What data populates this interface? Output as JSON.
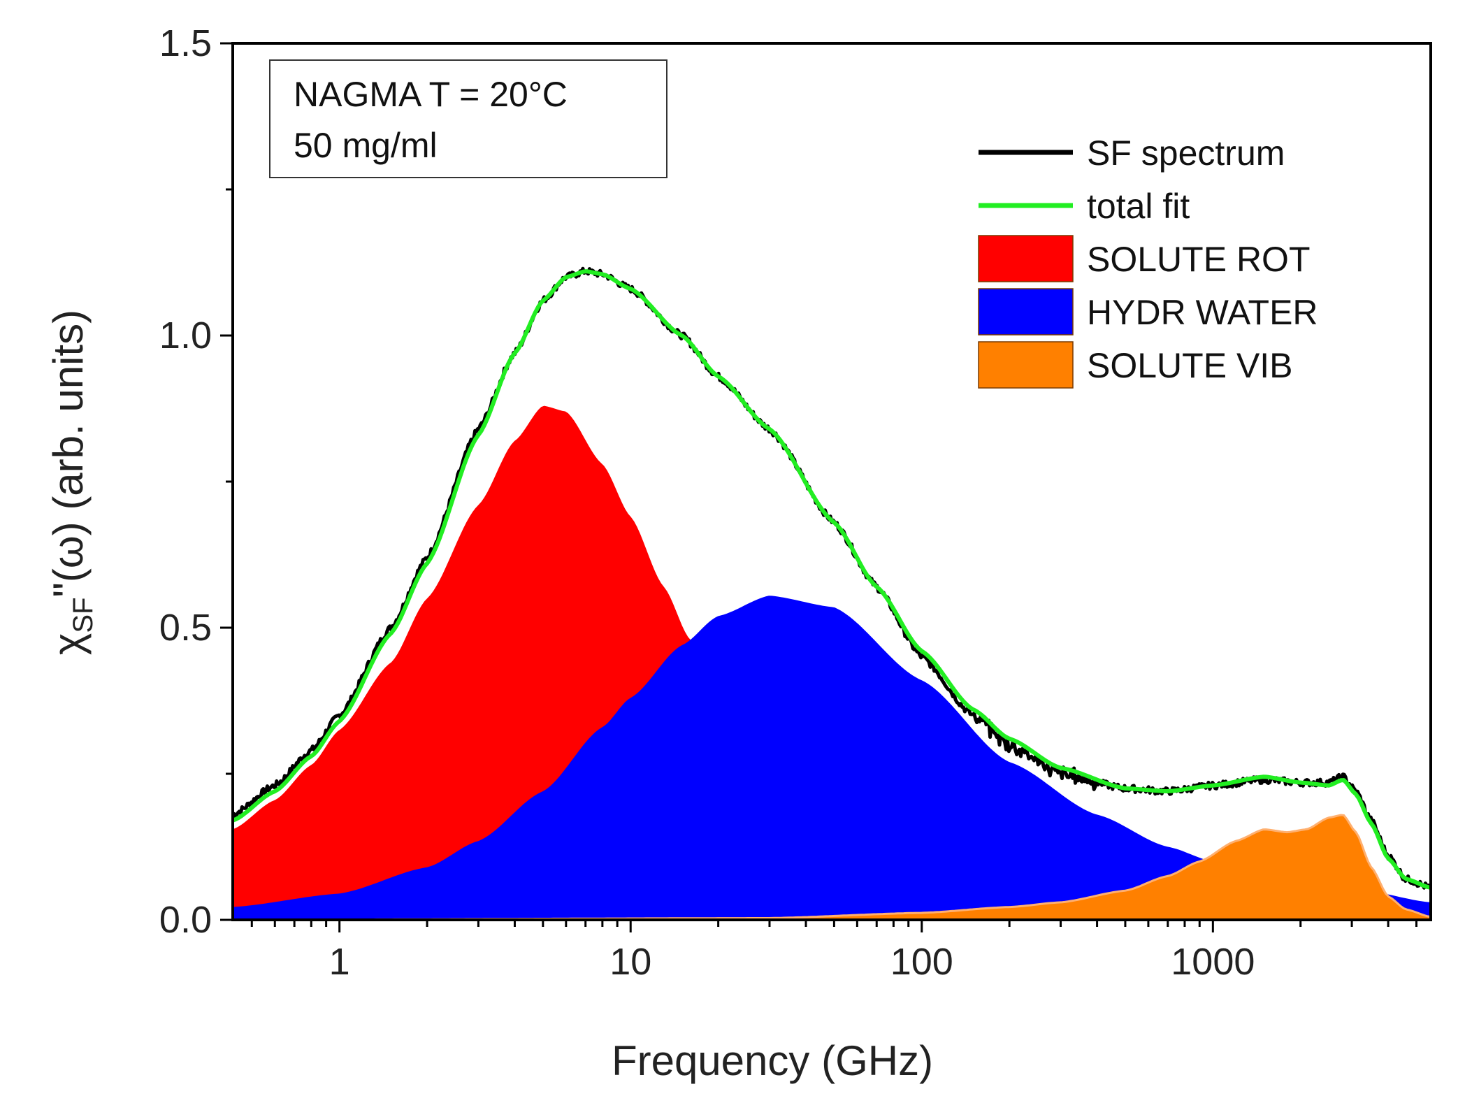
{
  "chart_data": {
    "type": "area",
    "title": "",
    "xlabel": "Frequency (GHz)",
    "ylabel": "χSF\"(ω) (arb. units)",
    "ylabel_parts": {
      "symbol": "χ",
      "subscript": "SF",
      "rest": "\"(ω) (arb. units)"
    },
    "xscale": "log",
    "xlim": [
      0.43,
      5600
    ],
    "ylim": [
      0,
      1.5
    ],
    "xticks": [
      1,
      10,
      100,
      1000
    ],
    "xtick_labels": [
      "1",
      "10",
      "100",
      "1000"
    ],
    "yticks": [
      0,
      0.5,
      1.0,
      1.5
    ],
    "ytick_labels": [
      "0.0",
      "0.5",
      "1.0",
      "1.5"
    ],
    "annotation": [
      "NAGMA T = 20°C",
      "50 mg/ml"
    ],
    "legend_position": "top-right",
    "legend": [
      {
        "label": "SF spectrum",
        "kind": "line",
        "color": "#000000"
      },
      {
        "label": "total fit",
        "kind": "line",
        "color": "#22ee22"
      },
      {
        "label": "SOLUTE ROT",
        "kind": "area",
        "color": "#ff0000"
      },
      {
        "label": "HYDR WATER",
        "kind": "area",
        "color": "#0000ff"
      },
      {
        "label": "SOLUTE VIB",
        "kind": "area",
        "color": "#ff8000"
      }
    ],
    "series": [
      {
        "name": "SOLUTE ROT",
        "kind": "area",
        "color": "#ff0000",
        "x": [
          0.43,
          0.6,
          0.8,
          1,
          1.5,
          2,
          3,
          4,
          5,
          6,
          8,
          10,
          13,
          16,
          20,
          25,
          30,
          40,
          60,
          100,
          200,
          500,
          1000,
          5600
        ],
        "y": [
          0.155,
          0.205,
          0.265,
          0.325,
          0.44,
          0.55,
          0.71,
          0.82,
          0.88,
          0.87,
          0.78,
          0.69,
          0.57,
          0.48,
          0.39,
          0.31,
          0.25,
          0.17,
          0.09,
          0.035,
          0.01,
          0.003,
          0.001,
          0.0
        ]
      },
      {
        "name": "HYDR WATER",
        "kind": "area",
        "color": "#0000ff",
        "x": [
          0.43,
          1,
          2,
          3,
          5,
          8,
          10,
          15,
          20,
          30,
          50,
          100,
          200,
          400,
          700,
          1000,
          2000,
          3000,
          5600
        ],
        "y": [
          0.022,
          0.045,
          0.09,
          0.135,
          0.22,
          0.33,
          0.38,
          0.47,
          0.52,
          0.555,
          0.535,
          0.41,
          0.27,
          0.18,
          0.125,
          0.1,
          0.075,
          0.055,
          0.03
        ]
      },
      {
        "name": "SOLUTE VIB",
        "kind": "area",
        "color": "#ff8000",
        "x": [
          0.43,
          30,
          100,
          200,
          300,
          500,
          700,
          900,
          1200,
          1500,
          1800,
          2100,
          2500,
          2800,
          3100,
          3500,
          4000,
          4600,
          5600
        ],
        "y": [
          0.0,
          0.003,
          0.012,
          0.022,
          0.03,
          0.05,
          0.075,
          0.1,
          0.135,
          0.155,
          0.15,
          0.155,
          0.175,
          0.18,
          0.15,
          0.09,
          0.04,
          0.018,
          0.005
        ]
      },
      {
        "name": "SF spectrum",
        "kind": "line",
        "color": "#000000",
        "x": [
          0.43,
          0.6,
          0.8,
          1,
          1.5,
          2,
          3,
          4,
          5,
          6,
          7,
          8,
          10,
          15,
          20,
          30,
          50,
          70,
          100,
          150,
          200,
          300,
          500,
          700,
          1000,
          1500,
          2000,
          2500,
          2800,
          3100,
          3500,
          4000,
          4600,
          5600
        ],
        "y": [
          0.18,
          0.23,
          0.29,
          0.35,
          0.5,
          0.62,
          0.84,
          0.97,
          1.06,
          1.1,
          1.11,
          1.105,
          1.08,
          1.0,
          0.93,
          0.84,
          0.68,
          0.57,
          0.45,
          0.35,
          0.3,
          0.25,
          0.225,
          0.22,
          0.23,
          0.24,
          0.235,
          0.235,
          0.245,
          0.22,
          0.17,
          0.11,
          0.07,
          0.055
        ]
      },
      {
        "name": "total fit",
        "kind": "line",
        "color": "#22ee22",
        "x": [
          0.43,
          0.6,
          0.8,
          1,
          1.5,
          2,
          3,
          4,
          5,
          6,
          7,
          8,
          10,
          15,
          20,
          30,
          50,
          70,
          100,
          150,
          200,
          300,
          500,
          700,
          1000,
          1500,
          2000,
          2500,
          2800,
          3100,
          3500,
          4000,
          4600,
          5600
        ],
        "y": [
          0.17,
          0.22,
          0.28,
          0.34,
          0.49,
          0.61,
          0.83,
          0.97,
          1.06,
          1.1,
          1.11,
          1.105,
          1.08,
          1.0,
          0.93,
          0.84,
          0.68,
          0.57,
          0.46,
          0.36,
          0.31,
          0.26,
          0.225,
          0.22,
          0.23,
          0.245,
          0.235,
          0.23,
          0.24,
          0.215,
          0.165,
          0.105,
          0.07,
          0.055
        ]
      }
    ]
  }
}
